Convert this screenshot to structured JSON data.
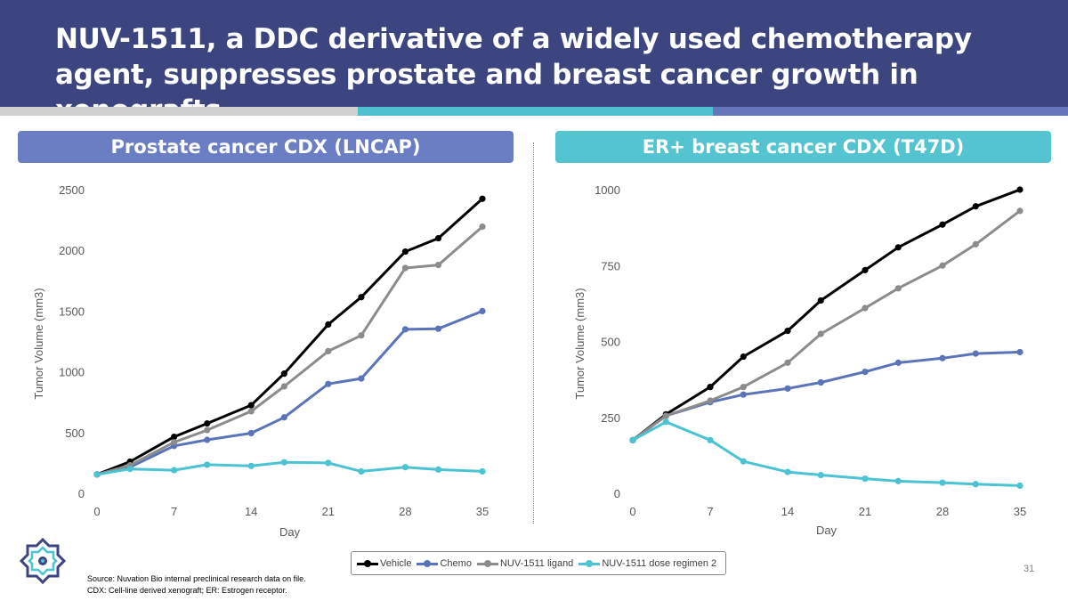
{
  "slide": {
    "title": "NUV-1511, a DDC derivative of a widely used chemotherapy agent, suppresses prostate and breast cancer growth in xenografts",
    "page_number": "31",
    "source_line1": "Source: Nuvation Bio internal preclinical research data on file.",
    "source_line2": "CDX: Cell-line derived xenograft; ER: Estrogen receptor.",
    "logo_icon": "nuvation-logo-icon"
  },
  "colors": {
    "header_bg": "#3d4580",
    "stripe_gray": "#d0d0d0",
    "stripe_teal": "#4fc0cf",
    "stripe_blue": "#6676bd",
    "panel_left": "#6c7ec3",
    "panel_right": "#55c4d1",
    "vehicle": "#000000",
    "chemo": "#5b73b8",
    "ligand": "#8c8c8c",
    "regimen2": "#4cc3d2"
  },
  "panels": {
    "left_title": "Prostate cancer CDX (LNCAP)",
    "right_title": "ER+ breast cancer CDX (T47D)"
  },
  "legend": {
    "items": [
      "Vehicle",
      "Chemo",
      "NUV-1511 ligand",
      "NUV-1511 dose regimen 2"
    ]
  },
  "chart_data": [
    {
      "type": "line",
      "title": "Prostate cancer CDX (LNCAP)",
      "xlabel": "Day",
      "ylabel": "Tumor Volume (mm3)",
      "xlim": [
        0,
        35
      ],
      "ylim": [
        0,
        2500
      ],
      "xticks": [
        "0",
        "7",
        "14",
        "21",
        "28",
        "35"
      ],
      "yticks": [
        "0",
        "500",
        "1000",
        "1500",
        "2000",
        "2500"
      ],
      "x": [
        0,
        3,
        7,
        10,
        14,
        17,
        21,
        24,
        28,
        31,
        35
      ],
      "series": [
        {
          "name": "Vehicle",
          "color": "#000000",
          "values": [
            155,
            260,
            465,
            575,
            725,
            985,
            1390,
            1615,
            1990,
            2100,
            2425
          ]
        },
        {
          "name": "Chemo",
          "color": "#5b73b8",
          "values": [
            155,
            215,
            390,
            440,
            495,
            625,
            900,
            945,
            1350,
            1355,
            1500
          ]
        },
        {
          "name": "NUV-1511 ligand",
          "color": "#8c8c8c",
          "values": [
            155,
            230,
            420,
            520,
            675,
            880,
            1170,
            1300,
            1855,
            1880,
            2195
          ]
        },
        {
          "name": "NUV-1511 dose regimen 2",
          "color": "#4cc3d2",
          "values": [
            155,
            200,
            190,
            235,
            225,
            255,
            250,
            180,
            215,
            195,
            180
          ]
        }
      ]
    },
    {
      "type": "line",
      "title": "ER+ breast cancer CDX (T47D)",
      "xlabel": "Day",
      "ylabel": "Tumor Volume (mm3)",
      "xlim": [
        0,
        35
      ],
      "ylim": [
        0,
        1000
      ],
      "xticks": [
        "0",
        "7",
        "14",
        "21",
        "28",
        "35"
      ],
      "yticks": [
        "0",
        "250",
        "500",
        "750",
        "1000"
      ],
      "x": [
        0,
        3,
        7,
        10,
        14,
        17,
        21,
        24,
        28,
        31,
        35
      ],
      "series": [
        {
          "name": "Vehicle",
          "color": "#000000",
          "values": [
            175,
            260,
            350,
            450,
            535,
            635,
            735,
            810,
            885,
            945,
            1000
          ]
        },
        {
          "name": "Chemo",
          "color": "#5b73b8",
          "values": [
            175,
            255,
            300,
            325,
            345,
            365,
            400,
            430,
            445,
            460,
            465
          ]
        },
        {
          "name": "NUV-1511 ligand",
          "color": "#8c8c8c",
          "values": [
            175,
            255,
            305,
            350,
            430,
            525,
            610,
            675,
            750,
            820,
            930
          ]
        },
        {
          "name": "NUV-1511 dose regimen 2",
          "color": "#4cc3d2",
          "values": [
            175,
            235,
            175,
            105,
            70,
            60,
            48,
            40,
            35,
            30,
            25
          ]
        }
      ]
    }
  ]
}
